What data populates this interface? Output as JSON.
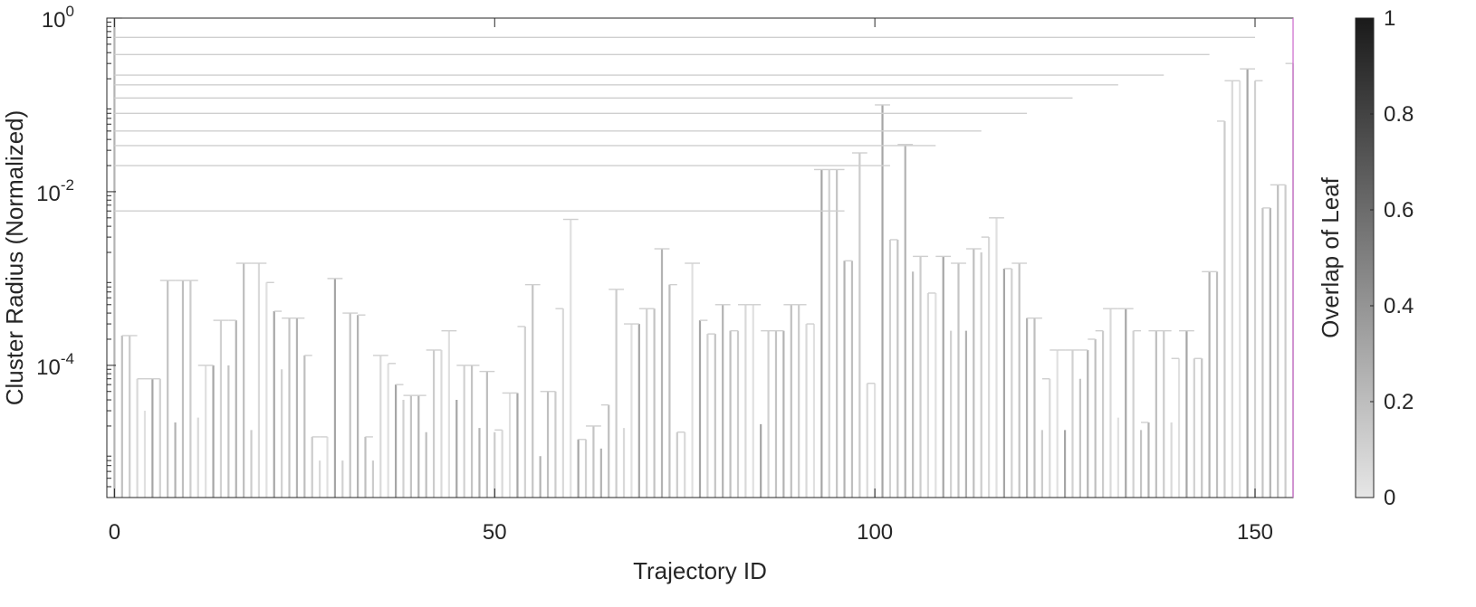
{
  "chart_data": {
    "type": "dendrogram",
    "xlabel": "Trajectory ID",
    "ylabel": "Cluster Radius (Normalized)",
    "yscale": "log",
    "xlim": [
      -1,
      155
    ],
    "ylim": [
      3e-06,
      1
    ],
    "xticks": [
      0,
      50,
      100,
      150
    ],
    "xtick_labels": [
      "0",
      "50",
      "100",
      "150"
    ],
    "yticks": [
      {
        "value": 1,
        "base": "10",
        "exp": "0"
      },
      {
        "value": 0.01,
        "base": "10",
        "exp": "-2"
      },
      {
        "value": 0.0001,
        "base": "10",
        "exp": "-4"
      }
    ],
    "colorbar": {
      "label": "Overlap of Leaf",
      "range": [
        0,
        1
      ],
      "ticks": [
        0,
        0.2,
        0.4,
        0.6,
        0.8,
        1
      ],
      "tick_labels": [
        "0",
        "0.2",
        "0.4",
        "0.6",
        "0.8",
        "1"
      ],
      "color_low": "#e6e6e6",
      "color_high": "#1a1a1a"
    },
    "leaf_count": 155,
    "leaf_heights": [
      1,
      0.00022,
      0.00022,
      7e-05,
      3e-05,
      7e-05,
      7e-05,
      0.00095,
      2.2e-05,
      0.00095,
      0.00095,
      2.5e-05,
      0.0001,
      0.0001,
      0.00033,
      0.0001,
      0.00033,
      0.0015,
      1.8e-05,
      0.0015,
      0.0009,
      0.00042,
      9e-05,
      0.00035,
      0.00035,
      0.00013,
      1.5e-05,
      8e-06,
      1.5e-05,
      0.001,
      8e-06,
      0.0004,
      0.00038,
      1.5e-05,
      8e-06,
      0.00013,
      0.000105,
      6e-05,
      4e-05,
      4.5e-05,
      4.5e-05,
      1.7e-05,
      0.00015,
      0.00015,
      0.00025,
      4e-05,
      0.0001,
      0.0001,
      1.9e-05,
      8.5e-05,
      1.7e-05,
      1.8e-05,
      4.8e-05,
      4.8e-05,
      0.00028,
      0.00085,
      9e-06,
      5e-05,
      5e-05,
      0.00045,
      0.0048,
      1.4e-05,
      1.4e-05,
      2e-05,
      1.1e-05,
      3.5e-05,
      0.00075,
      1.9e-05,
      0.0003,
      0.0003,
      0.00045,
      0.00045,
      0.0022,
      0.00085,
      1.7e-05,
      1.7e-05,
      0.0015,
      0.00033,
      0.00023,
      0.00023,
      0.0005,
      0.00025,
      0.00025,
      0.0005,
      0.0005,
      2.1e-05,
      0.00025,
      0.00025,
      0.00025,
      0.0005,
      0.0005,
      0.0003,
      0.0003,
      0.018,
      0.018,
      0.018,
      0.0016,
      0.0016,
      0.028,
      6.2e-05,
      6.2e-05,
      0.1,
      0.0028,
      0.0028,
      0.035,
      0.0012,
      0.0018,
      0.00068,
      0.00068,
      0.0018,
      0.00025,
      0.0015,
      0.00025,
      0.0022,
      0.002,
      0.003,
      0.005,
      0.0013,
      0.0013,
      0.0015,
      0.00035,
      0.00035,
      1.8e-05,
      7e-05,
      0.00015,
      1.8e-05,
      0.00015,
      7e-05,
      0.00015,
      0.0002,
      0.00025,
      0.00045,
      2.5e-05,
      0.00045,
      0.00025,
      1.8e-05,
      2.2e-05,
      0.00025,
      0.00025,
      2.2e-05,
      0.00012,
      0.00025,
      0.00012,
      0.00012,
      0.0012,
      0.0012,
      0.065,
      0.19,
      0.19,
      0.26,
      0.19,
      0.0065,
      0.0065,
      0.012,
      0.012,
      0.3
    ]
  }
}
